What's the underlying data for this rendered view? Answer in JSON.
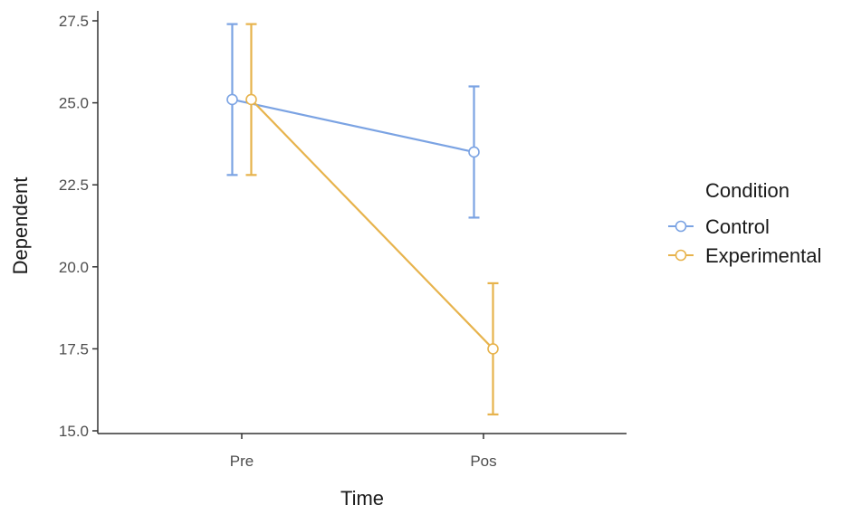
{
  "chart_data": {
    "type": "line",
    "categories": [
      "Pre",
      "Pos"
    ],
    "xlabel": "Time",
    "ylabel": "Dependent",
    "ylim": [
      15.0,
      27.5
    ],
    "yticks": [
      "15.0",
      "17.5",
      "20.0",
      "22.5",
      "25.0",
      "27.5"
    ],
    "grid": false,
    "legend": {
      "title": "Condition",
      "position": "right"
    },
    "series": [
      {
        "name": "Control",
        "color": "#7ba3e3",
        "values": [
          25.1,
          23.5
        ],
        "error_low": [
          22.8,
          21.5
        ],
        "error_high": [
          27.4,
          25.5
        ]
      },
      {
        "name": "Experimental",
        "color": "#e7b34c",
        "values": [
          25.1,
          17.5
        ],
        "error_low": [
          22.8,
          15.5
        ],
        "error_high": [
          27.4,
          19.5
        ]
      }
    ]
  }
}
